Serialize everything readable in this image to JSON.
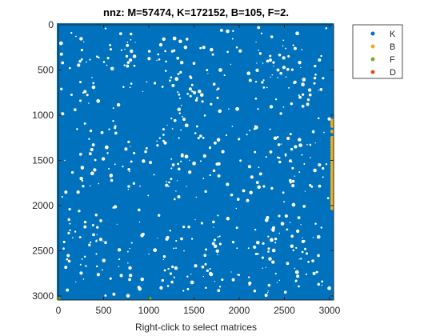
{
  "chart_data": {
    "type": "scatter",
    "title": "nnz: M=57474, K=172152, B=105, F=2.",
    "xlabel": "Right-click to select matrices",
    "ylabel": "",
    "xlim": [
      0,
      3045
    ],
    "ylim": [
      0,
      3045
    ],
    "y_reversed": true,
    "grid": false,
    "legend_position": "outside-top-right",
    "xticks": [
      "0",
      "500",
      "1000",
      "1500",
      "2000",
      "2500",
      "3000"
    ],
    "yticks": [
      "0",
      "500",
      "1000",
      "1500",
      "2000",
      "2500",
      "3000"
    ],
    "legend": [
      "K",
      "B",
      "F",
      "D"
    ],
    "colors": {
      "K": "#0072BD",
      "B": "#EDB120",
      "F": "#77AC30",
      "D": "#D95319"
    },
    "series": [
      {
        "name": "K",
        "description": "dense block-structured sparsity over rows/cols 0-3000"
      },
      {
        "name": "B",
        "points": [
          [
            3030,
            1060
          ],
          [
            3030,
            1090
          ],
          [
            3030,
            1120
          ],
          [
            3030,
            1180
          ],
          [
            3030,
            1250
          ],
          [
            3030,
            1280
          ],
          [
            3030,
            1310
          ],
          [
            3030,
            1340
          ],
          [
            3030,
            1370
          ],
          [
            3030,
            1400
          ],
          [
            3030,
            1430
          ],
          [
            3030,
            1460
          ],
          [
            3030,
            1490
          ],
          [
            3030,
            1520
          ],
          [
            3030,
            1550
          ],
          [
            3030,
            1580
          ],
          [
            3030,
            1610
          ],
          [
            3030,
            1640
          ],
          [
            3030,
            1670
          ],
          [
            3030,
            1700
          ],
          [
            3030,
            1730
          ],
          [
            3030,
            1760
          ],
          [
            3030,
            1790
          ],
          [
            3030,
            1820
          ],
          [
            3030,
            1850
          ],
          [
            3030,
            1880
          ],
          [
            3030,
            1910
          ],
          [
            3030,
            1940
          ],
          [
            3030,
            1970
          ],
          [
            3030,
            2000
          ],
          [
            3030,
            2030
          ]
        ]
      },
      {
        "name": "F",
        "points": [
          [
            0,
            3030
          ],
          [
            1010,
            3030
          ]
        ]
      },
      {
        "name": "D",
        "points": []
      }
    ]
  }
}
